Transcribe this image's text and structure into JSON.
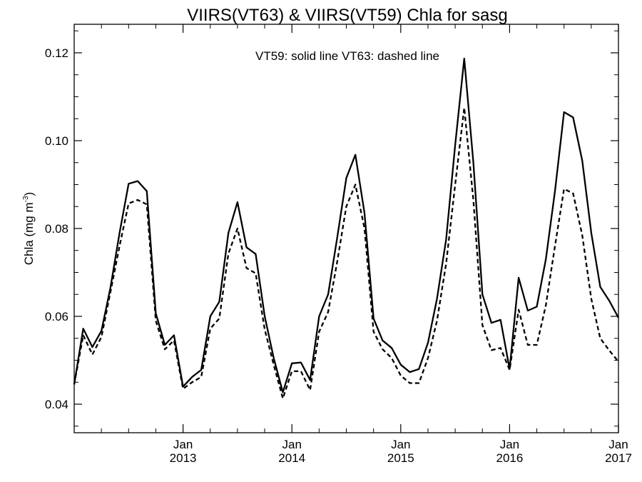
{
  "chart_data": {
    "type": "line",
    "title": "VIIRS(VT63) & VIIRS(VT59)  Chla for sasg",
    "ylabel": "Chla (mg m",
    "ylabel_sup": "-3",
    "ylabel_close": ")",
    "annotation": "VT59: solid line   VT63: dashed line",
    "ylim": [
      0.0335,
      0.1265
    ],
    "xlim": [
      2012.0,
      2017.0
    ],
    "y_ticks": [
      {
        "value": 0.04,
        "label": "0.04"
      },
      {
        "value": 0.06,
        "label": "0.06"
      },
      {
        "value": 0.08,
        "label": "0.08"
      },
      {
        "value": 0.1,
        "label": "0.10"
      },
      {
        "value": 0.12,
        "label": "0.12"
      }
    ],
    "x_ticks": [
      {
        "value": 2013,
        "month": "Jan",
        "year": "2013"
      },
      {
        "value": 2014,
        "month": "Jan",
        "year": "2014"
      },
      {
        "value": 2015,
        "month": "Jan",
        "year": "2015"
      },
      {
        "value": 2016,
        "month": "Jan",
        "year": "2016"
      },
      {
        "value": 2017,
        "month": "Jan",
        "year": "2017"
      }
    ],
    "x": [
      2012.0,
      2012.083,
      2012.167,
      2012.25,
      2012.333,
      2012.417,
      2012.5,
      2012.583,
      2012.667,
      2012.75,
      2012.833,
      2012.917,
      2013.0,
      2013.083,
      2013.167,
      2013.25,
      2013.333,
      2013.417,
      2013.5,
      2013.583,
      2013.667,
      2013.75,
      2013.833,
      2013.917,
      2014.0,
      2014.083,
      2014.167,
      2014.25,
      2014.333,
      2014.417,
      2014.5,
      2014.583,
      2014.667,
      2014.75,
      2014.833,
      2014.917,
      2015.0,
      2015.083,
      2015.167,
      2015.25,
      2015.333,
      2015.417,
      2015.5,
      2015.583,
      2015.667,
      2015.75,
      2015.833,
      2015.917,
      2016.0,
      2016.083,
      2016.167,
      2016.25,
      2016.333,
      2016.417,
      2016.5,
      2016.583,
      2016.667,
      2016.75,
      2016.833,
      2016.917,
      2017.0
    ],
    "series": [
      {
        "name": "VT59",
        "style": "solid",
        "color": "#000000",
        "values": [
          0.0445,
          0.0572,
          0.053,
          0.0567,
          0.0665,
          0.079,
          0.0902,
          0.0908,
          0.0885,
          0.0607,
          0.0535,
          0.0557,
          0.044,
          0.0462,
          0.0478,
          0.06,
          0.0633,
          0.079,
          0.086,
          0.0757,
          0.0742,
          0.06,
          0.0505,
          0.0427,
          0.0493,
          0.0495,
          0.0455,
          0.06,
          0.065,
          0.078,
          0.0915,
          0.0968,
          0.0835,
          0.0595,
          0.0545,
          0.0528,
          0.049,
          0.0473,
          0.048,
          0.054,
          0.064,
          0.0775,
          0.099,
          0.1187,
          0.095,
          0.065,
          0.0585,
          0.0592,
          0.048,
          0.0688,
          0.0613,
          0.0622,
          0.073,
          0.0885,
          0.1065,
          0.1053,
          0.0955,
          0.079,
          0.0667,
          0.0635,
          0.0597
        ]
      },
      {
        "name": "VT63",
        "style": "dashed",
        "color": "#000000",
        "values": [
          0.0445,
          0.0557,
          0.0513,
          0.0553,
          0.0655,
          0.076,
          0.0857,
          0.0865,
          0.0855,
          0.059,
          0.0525,
          0.0545,
          0.0435,
          0.045,
          0.0462,
          0.0572,
          0.0595,
          0.0743,
          0.08,
          0.071,
          0.0698,
          0.057,
          0.049,
          0.0413,
          0.0475,
          0.0475,
          0.0432,
          0.0565,
          0.061,
          0.0725,
          0.085,
          0.09,
          0.08,
          0.0565,
          0.0525,
          0.0505,
          0.0465,
          0.0448,
          0.0448,
          0.0505,
          0.059,
          0.072,
          0.09,
          0.1075,
          0.0865,
          0.058,
          0.0523,
          0.0528,
          0.0478,
          0.0615,
          0.0535,
          0.0535,
          0.0625,
          0.076,
          0.089,
          0.088,
          0.0785,
          0.064,
          0.055,
          0.0522,
          0.0497
        ]
      }
    ],
    "grid": false,
    "legend": "top-center annotation"
  }
}
